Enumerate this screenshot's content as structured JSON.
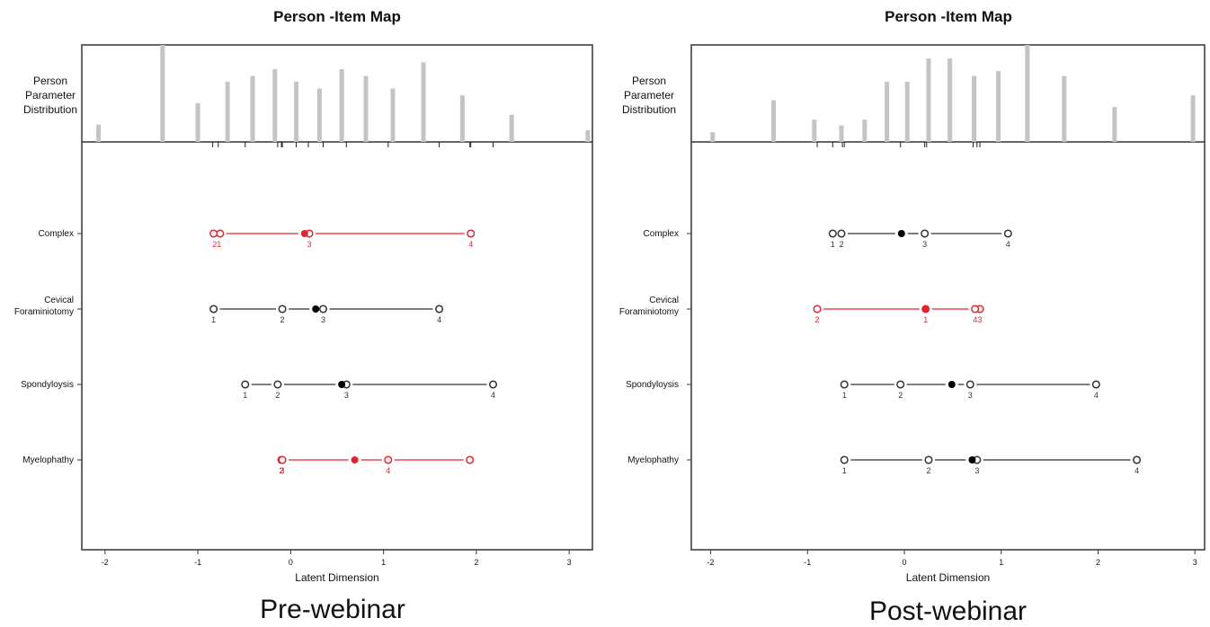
{
  "chart_data": [
    {
      "type": "person-item-map",
      "title": "Person -Item Map",
      "dist_label": [
        "Person",
        "Parameter",
        "Distribution"
      ],
      "xlabel": "Latent Dimension",
      "caption": "Pre-webinar",
      "xlim": [
        -2.25,
        3.25
      ],
      "xticks": [
        -2,
        -1,
        0,
        1,
        2,
        3
      ],
      "highlight_color": "#e0262f",
      "default_color": "#333333",
      "person_distribution": {
        "x": [
          -2.07,
          -1.38,
          -1.0,
          -0.68,
          -0.41,
          -0.17,
          0.06,
          0.31,
          0.55,
          0.81,
          1.1,
          1.43,
          1.85,
          2.38,
          3.2
        ],
        "y": [
          0.18,
          1.0,
          0.4,
          0.62,
          0.68,
          0.75,
          0.62,
          0.55,
          0.75,
          0.68,
          0.55,
          0.82,
          0.48,
          0.28,
          0.12
        ]
      },
      "threshold_ticks": [
        -0.84,
        -0.78,
        -0.49,
        -0.14,
        -0.1,
        -0.09,
        0.06,
        0.19,
        0.35,
        0.6,
        1.05,
        1.6,
        1.93,
        1.94,
        2.18
      ],
      "items": [
        {
          "name": "Complex",
          "location": 0.15,
          "highlight": true,
          "thresholds": [
            {
              "x": -0.76,
              "label": "1"
            },
            {
              "x": -0.83,
              "label": "2"
            },
            {
              "x": 0.2,
              "label": "3"
            },
            {
              "x": 1.94,
              "label": "4"
            }
          ],
          "tick_text": [
            "21",
            "3",
            "4"
          ]
        },
        {
          "name": "Cevical Foraminiotomy",
          "location": 0.27,
          "highlight": false,
          "thresholds": [
            {
              "x": -0.83,
              "label": "1"
            },
            {
              "x": -0.09,
              "label": "2"
            },
            {
              "x": 0.35,
              "label": "3"
            },
            {
              "x": 1.6,
              "label": "4"
            }
          ],
          "tick_text": [
            "1",
            "2",
            "3",
            "4"
          ]
        },
        {
          "name": "Spondyloysis",
          "location": 0.55,
          "highlight": false,
          "thresholds": [
            {
              "x": -0.49,
              "label": "1"
            },
            {
              "x": -0.14,
              "label": "2"
            },
            {
              "x": 0.6,
              "label": "3"
            },
            {
              "x": 2.18,
              "label": "4"
            }
          ],
          "tick_text": [
            "1",
            "2",
            "3",
            "4"
          ]
        },
        {
          "name": "Myelophathy",
          "location": 0.69,
          "highlight": true,
          "thresholds": [
            {
              "x": -0.1,
              "label": "1"
            },
            {
              "x": -0.09,
              "label": "2"
            },
            {
              "x": 1.05,
              "label": "3"
            },
            {
              "x": 1.93,
              "label": "4"
            }
          ],
          "tick_text": [
            "2",
            "3",
            "4"
          ]
        }
      ]
    },
    {
      "type": "person-item-map",
      "title": "Person -Item Map",
      "dist_label": [
        "Person",
        "Parameter",
        "Distribution"
      ],
      "xlabel": "Latent Dimension",
      "caption": "Post-webinar",
      "xlim": [
        -2.2,
        3.1
      ],
      "xticks": [
        -2,
        -1,
        0,
        1,
        2,
        3
      ],
      "highlight_color": "#e0262f",
      "default_color": "#333333",
      "person_distribution": {
        "x": [
          -1.98,
          -1.35,
          -0.93,
          -0.65,
          -0.41,
          -0.18,
          0.03,
          0.25,
          0.47,
          0.72,
          0.97,
          1.27,
          1.65,
          2.17,
          2.98
        ],
        "y": [
          0.1,
          0.43,
          0.23,
          0.17,
          0.23,
          0.62,
          0.62,
          0.86,
          0.86,
          0.68,
          0.73,
          1.0,
          0.68,
          0.36,
          0.48
        ]
      },
      "threshold_ticks": [
        -0.9,
        -0.74,
        -0.64,
        -0.62,
        -0.04,
        0.21,
        0.23,
        0.71,
        0.75,
        0.78
      ],
      "items": [
        {
          "name": "Complex",
          "location": -0.03,
          "highlight": false,
          "thresholds": [
            {
              "x": -0.74,
              "label": "1"
            },
            {
              "x": -0.65,
              "label": "2"
            },
            {
              "x": 0.21,
              "label": "3"
            },
            {
              "x": 1.07,
              "label": "4"
            }
          ],
          "tick_text": [
            "1",
            "2",
            "3",
            "4"
          ]
        },
        {
          "name": "Cevical Foraminiotomy",
          "location": 0.22,
          "highlight": true,
          "thresholds": [
            {
              "x": 0.22,
              "label": "1"
            },
            {
              "x": -0.9,
              "label": "2"
            },
            {
              "x": 0.78,
              "label": "3"
            },
            {
              "x": 0.73,
              "label": "4"
            }
          ],
          "tick_text": [
            "2",
            "1",
            "43"
          ]
        },
        {
          "name": "Spondyloysis",
          "location": 0.49,
          "highlight": false,
          "thresholds": [
            {
              "x": -0.62,
              "label": "1"
            },
            {
              "x": -0.04,
              "label": "2"
            },
            {
              "x": 0.68,
              "label": "3"
            },
            {
              "x": 1.98,
              "label": "4"
            }
          ],
          "tick_text": [
            "1",
            "2",
            "3",
            "4"
          ]
        },
        {
          "name": "Myelophathy",
          "location": 0.7,
          "highlight": false,
          "thresholds": [
            {
              "x": -0.62,
              "label": "1"
            },
            {
              "x": 0.25,
              "label": "2"
            },
            {
              "x": 0.75,
              "label": "3"
            },
            {
              "x": 2.4,
              "label": "4"
            }
          ],
          "tick_text": [
            "1",
            "2",
            "3",
            "4"
          ]
        }
      ]
    }
  ]
}
